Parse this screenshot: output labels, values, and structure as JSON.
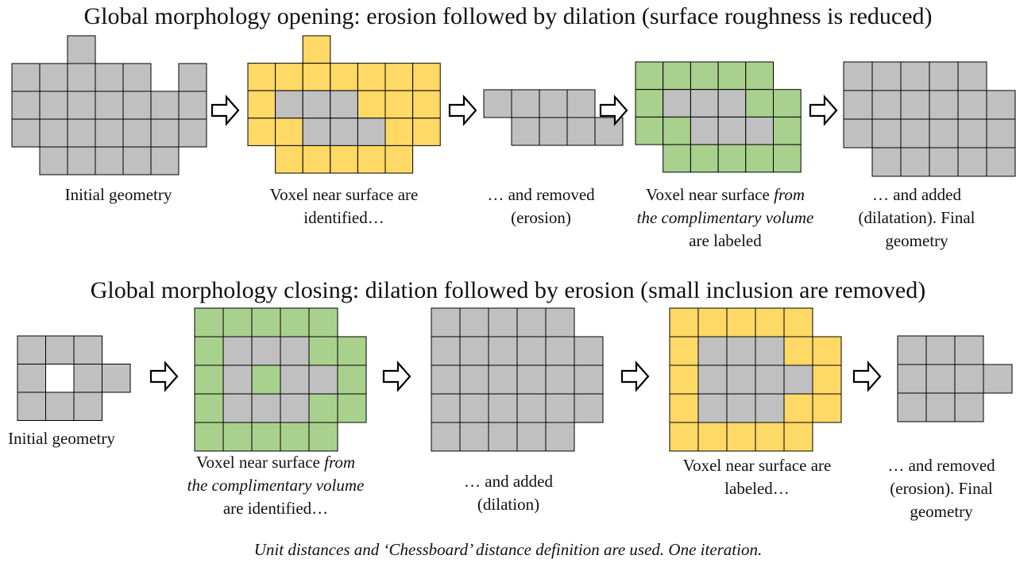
{
  "opening": {
    "title": "Global morphology opening: erosion followed by dilation (surface roughness is reduced)",
    "captions": [
      {
        "lines": [
          "Initial geometry"
        ]
      },
      {
        "lines": [
          "Voxel near surface are",
          "identified…"
        ]
      },
      {
        "lines": [
          "… and removed",
          "(erosion)"
        ]
      },
      {
        "lines": [
          "Voxel near surface <i>from</i>",
          "<i>the complimentary volume</i>",
          "are labeled"
        ]
      },
      {
        "lines": [
          "… and added",
          "(dilatation). Final",
          "geometry"
        ]
      }
    ]
  },
  "closing": {
    "title": "Global morphology closing: dilation followed by erosion (small inclusion are removed)",
    "captions": [
      {
        "lines": [
          "Initial geometry"
        ]
      },
      {
        "lines": [
          "Voxel near surface <i>from</i>",
          "<i>the complimentary volume</i>",
          "are identified…"
        ]
      },
      {
        "lines": [
          "… and added",
          "(dilation)"
        ]
      },
      {
        "lines": [
          "Voxel near surface are",
          "labeled…"
        ]
      },
      {
        "lines": [
          "… and removed",
          "(erosion). Final",
          "geometry"
        ]
      }
    ]
  },
  "footer": "Unit distances and ‘Chessboard’ distance definition are used. One iteration.",
  "colors": {
    "voxel": "#c0c0c0",
    "yellow": "#ffd966",
    "green": "#a9d18e",
    "outline": "#000000"
  },
  "legend": {
    "G": "solid voxel",
    "Y": "labeled voxel (yellow)",
    "N": "labeled voxel (green)",
    "W": "empty voxel"
  },
  "voxel_grids": {
    "opening": [
      [
        "..G...",
        "GGGGG.G",
        "GGGGGGG",
        "GGGGGGG",
        ".GGGGG."
      ],
      [
        "..Y....",
        "YYYYYYY",
        "YGGGYYY",
        "YYGGGYY",
        ".YYYYY."
      ],
      [
        "GGGG",
        ".GGGG"
      ],
      [
        "NNNNN.",
        "NGGGNN",
        "NNGGGN",
        ".NNNNN"
      ],
      [
        "GGGGG.",
        "GGGGGG",
        "GGGGGG",
        ".GGGGG"
      ]
    ],
    "closing": [
      [
        "GGG.",
        "GWGG",
        "GGG."
      ],
      [
        "NNNNN.",
        "NGGGNN",
        "NGNGGN",
        "NGGGNN",
        "NNNNN."
      ],
      [
        "GGGGG.",
        "GGGGGG",
        "GGGGGG",
        "GGGGGG",
        "GGGGG."
      ],
      [
        "YYYYY.",
        "YGGGYY",
        "YGGGGY",
        "YGGGYY",
        "YYYYY."
      ],
      [
        "GGG.",
        "GGGG",
        "GGG."
      ]
    ]
  }
}
